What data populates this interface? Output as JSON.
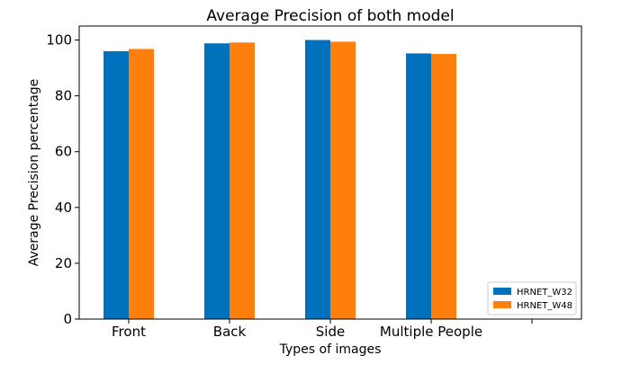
{
  "chart_data": {
    "type": "bar",
    "title": "Average Precision of both model",
    "xlabel": "Types of images",
    "ylabel": "Average Precision percentage",
    "categories": [
      "Front",
      "Back",
      "Side",
      "Multiple People"
    ],
    "series": [
      {
        "name": "HRNET_W32",
        "color": "#0072bd",
        "values": [
          96.0,
          98.8,
          100.0,
          95.2
        ]
      },
      {
        "name": "HRNET_W48",
        "color": "#ff7f0e",
        "values": [
          96.8,
          99.1,
          99.4,
          95.0
        ]
      }
    ],
    "ylim": [
      0,
      105
    ],
    "yticks": [
      0,
      20,
      40,
      60,
      80,
      100
    ],
    "grid": false,
    "legend": "lower-right"
  }
}
